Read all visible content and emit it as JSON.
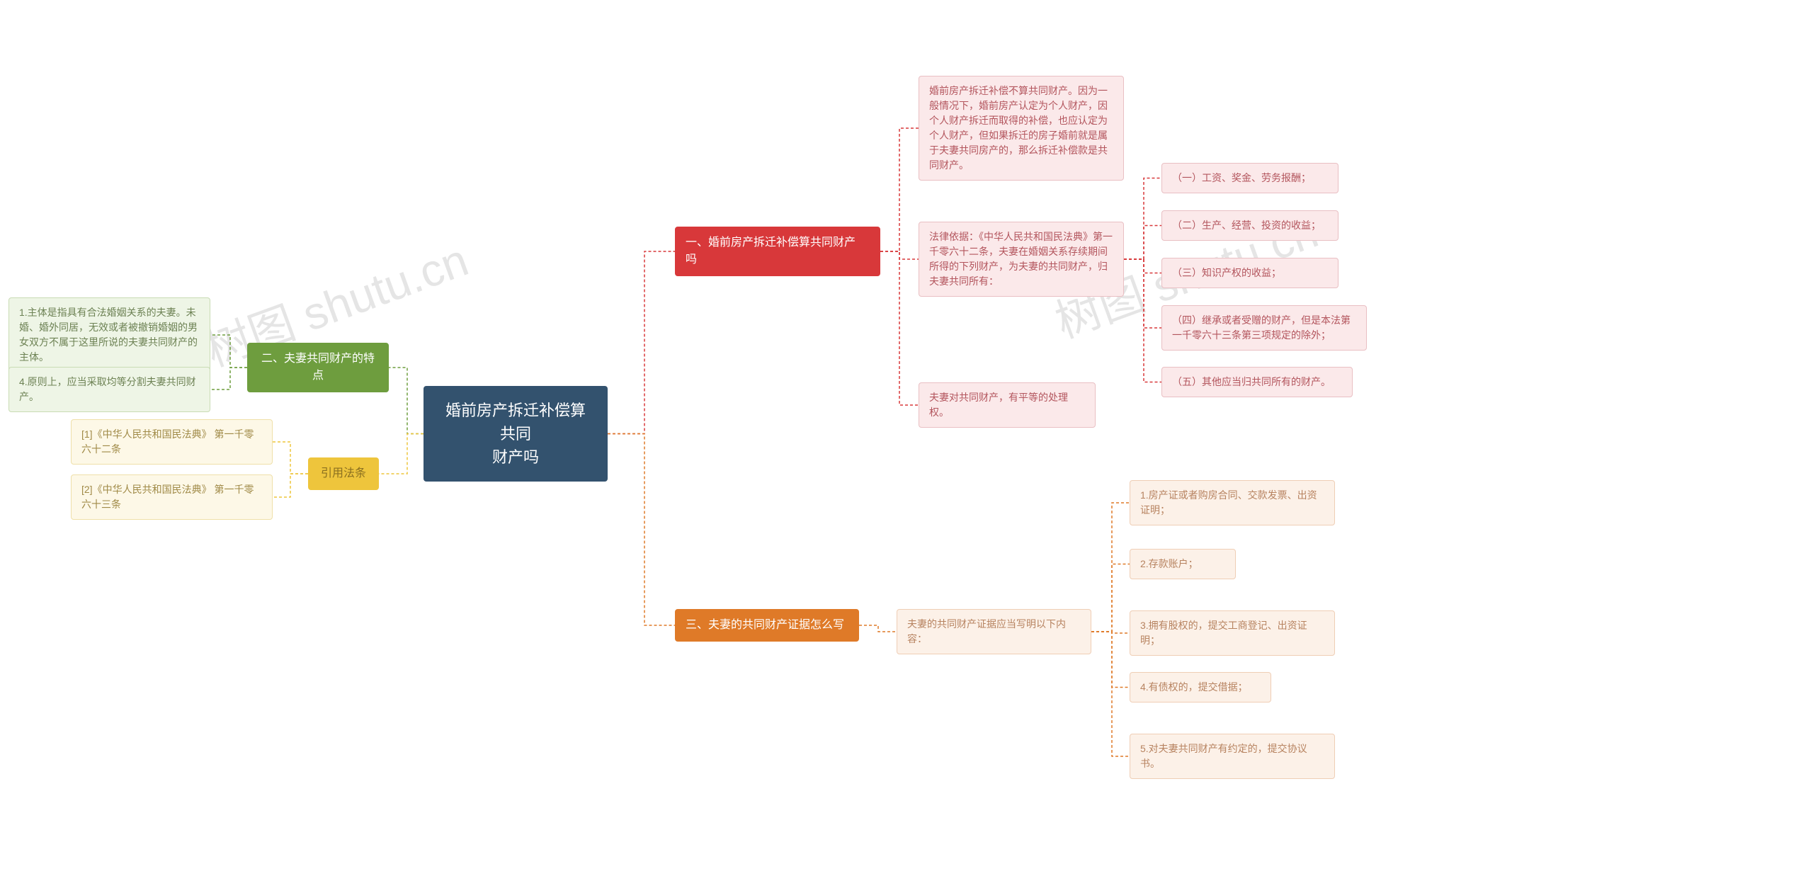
{
  "watermark": "树图 shutu.cn",
  "root": {
    "label": "婚前房产拆迁补偿算共同\n财产吗",
    "bg": "#33526e",
    "fg": "#ffffff"
  },
  "branches": {
    "b1": {
      "label": "一、婚前房产拆迁补偿算共同财产\n吗",
      "bg": "#d8383a",
      "fg": "#ffffff",
      "border": "#d8383a",
      "leaf_bg": "#fbe9ea",
      "leaf_fg": "#b3555d",
      "leaf_border": "#e9bfc3",
      "nodes": {
        "n1": "婚前房产拆迁补偿不算共同财产。因为一般情况下，婚前房产认定为个人财产，因个人财产拆迁而取得的补偿，也应认定为个人财产，但如果拆迁的房子婚前就是属于夫妻共同房产的，那么拆迁补偿款是共同财产。",
        "n2": "法律依据：《中华人民共和国民法典》第一千零六十二条，夫妻在婚姻关系存续期间所得的下列财产，为夫妻的共同财产，归夫妻共同所有：",
        "n3": "夫妻对共同财产，有平等的处理权。",
        "n2_children": {
          "c1": "（一）工资、奖金、劳务报酬；",
          "c2": "（二）生产、经营、投资的收益；",
          "c3": "（三）知识产权的收益；",
          "c4": "（四）继承或者受赠的财产，但是本法第一千零六十三条第三项规定的除外；",
          "c5": "（五）其他应当归共同所有的财产。"
        }
      }
    },
    "b2": {
      "label": "二、夫妻共同财产的特点",
      "bg": "#6e9d3e",
      "fg": "#ffffff",
      "border": "#6e9d3e",
      "leaf_bg": "#eef5e6",
      "leaf_fg": "#6d8254",
      "leaf_border": "#c9dcb4",
      "nodes": {
        "n1": "1.主体是指具有合法婚姻关系的夫妻。未婚、婚外同居，无效或者被撤销婚姻的男女双方不属于这里所说的夫妻共同财产的主体。",
        "n2": "4.原则上，应当采取均等分割夫妻共同财产。"
      }
    },
    "b3": {
      "label": "三、夫妻的共同财产证据怎么写",
      "bg": "#df7a28",
      "fg": "#ffffff",
      "border": "#df7a28",
      "leaf_bg": "#fcf1e8",
      "leaf_fg": "#b78360",
      "leaf_border": "#efceb5",
      "nodes": {
        "n1": "夫妻的共同财产证据应当写明以下内容：",
        "n1_children": {
          "c1": "1.房产证或者购房合同、交款发票、出资证明；",
          "c2": "2.存款账户；",
          "c3": "3.拥有股权的，提交工商登记、出资证明；",
          "c4": "4.有债权的，提交借据；",
          "c5": "5.对夫妻共同财产有约定的，提交协议书。"
        }
      }
    },
    "b4": {
      "label": "引用法条",
      "bg": "#eec53c",
      "fg": "#8a6f1f",
      "border": "#eec53c",
      "leaf_bg": "#fdf8e7",
      "leaf_fg": "#a08a47",
      "leaf_border": "#efe0a9",
      "nodes": {
        "n1": "[1]《中华人民共和国民法典》 第一千零六十二条",
        "n2": "[2]《中华人民共和国民法典》 第一千零六十三条"
      }
    }
  }
}
